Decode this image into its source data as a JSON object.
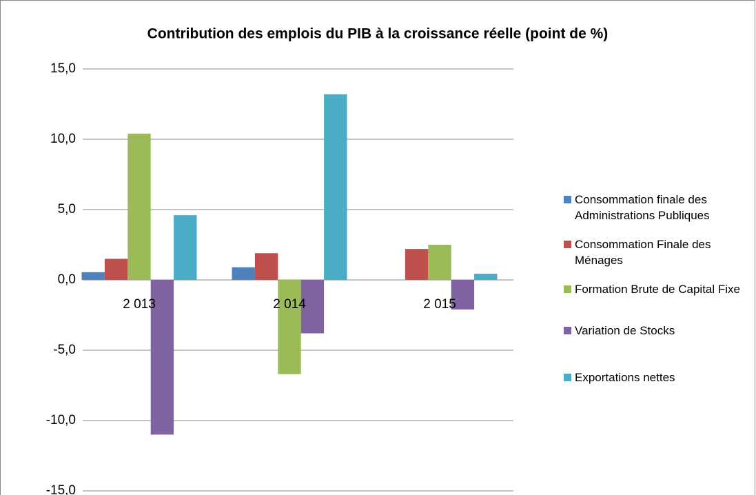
{
  "chart_data": {
    "type": "bar",
    "title": "Contribution des emplois du PIB à la croissance réelle (point de %)",
    "categories": [
      "2 013",
      "2 014",
      "2 015"
    ],
    "series": [
      {
        "name": "Consommation finale des Administrations Publiques",
        "color": "#4f81bd",
        "values": [
          0.55,
          0.9,
          0
        ]
      },
      {
        "name": "Consommation Finale des Ménages",
        "color": "#c0504d",
        "values": [
          1.5,
          1.9,
          2.2
        ]
      },
      {
        "name": "Formation Brute de Capital Fixe",
        "color": "#9bbb59",
        "values": [
          10.4,
          -6.7,
          2.5
        ]
      },
      {
        "name": "Variation de Stocks",
        "color": "#8064a2",
        "values": [
          -11.0,
          -3.8,
          -2.1
        ]
      },
      {
        "name": "Exportations nettes",
        "color": "#4bacc6",
        "values": [
          4.6,
          13.2,
          0.44
        ]
      }
    ],
    "ylim": [
      -15,
      15
    ],
    "yticks": [
      {
        "value": -15,
        "label": "-15,0"
      },
      {
        "value": -10,
        "label": "-10,0"
      },
      {
        "value": -5,
        "label": "-5,0"
      },
      {
        "value": 0,
        "label": "0,0"
      },
      {
        "value": 5,
        "label": "5,0"
      },
      {
        "value": 10,
        "label": "10,0"
      },
      {
        "value": 15,
        "label": "15,0"
      }
    ],
    "grid": true,
    "legend": "right"
  }
}
